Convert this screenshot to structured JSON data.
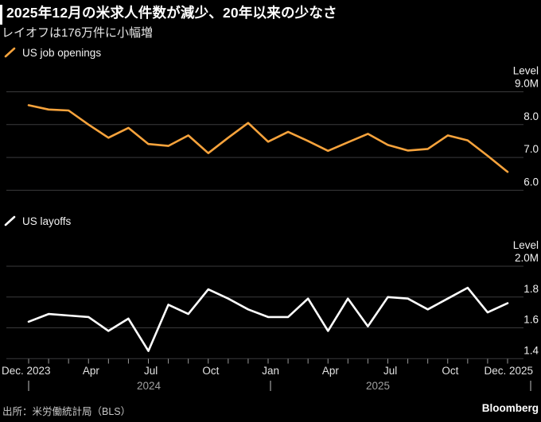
{
  "header": {
    "title": "2025年12月の米求人件数が減少、20年以来の少なさ",
    "subtitle": "レイオフは176万件に小幅増"
  },
  "footer": {
    "source": "出所：米労働統計局（BLS）",
    "logo": "Bloomberg"
  },
  "colors": {
    "background": "#000000",
    "openings_line": "#F7A33C",
    "layoffs_line": "#FFFFFF",
    "gridline": "#3A3A3C",
    "tick_label": "#F2F2F2",
    "month_label": "#E2E2E2",
    "year_label": "#A0A0A0",
    "tick_mark": "#9A9A9A"
  },
  "x_axis": {
    "months": [
      "Dec 2023",
      "Jan 2024",
      "Feb 2024",
      "Mar 2024",
      "Apr 2024",
      "May 2024",
      "Jun 2024",
      "Jul 2024",
      "Aug 2024",
      "Sep 2024",
      "Oct 2024",
      "Nov 2024",
      "Dec 2024",
      "Jan 2025",
      "Feb 2025",
      "Mar 2025",
      "Apr 2025",
      "May 2025",
      "Jun 2025",
      "Jul 2025",
      "Aug 2025",
      "Sep 2025",
      "Oct 2025",
      "Nov 2025",
      "Dec 2025"
    ],
    "tick_labels": [
      {
        "index": 0,
        "label": "Dec. 2023"
      },
      {
        "index": 4,
        "label": "Apr"
      },
      {
        "index": 7,
        "label": "Jul"
      },
      {
        "index": 10,
        "label": "Oct"
      },
      {
        "index": 13,
        "label": "Jan"
      },
      {
        "index": 16,
        "label": "Apr"
      },
      {
        "index": 19,
        "label": "Jul"
      },
      {
        "index": 22,
        "label": "Oct"
      },
      {
        "index": 24,
        "label": "Dec. 2025"
      }
    ],
    "year_labels": [
      "2024",
      "2025"
    ]
  },
  "chart_data": [
    {
      "type": "line",
      "title": "US job openings",
      "ylabel": "Level",
      "unit": "M",
      "ylim": [
        6.0,
        9.0
      ],
      "grid": true,
      "legend_position": "top-left",
      "axis_ticks": [
        {
          "value": 9.0,
          "label": "9.0M"
        },
        {
          "value": 8.0,
          "label": "8.0"
        },
        {
          "value": 7.0,
          "label": "7.0"
        },
        {
          "value": 6.0,
          "label": "6.0"
        }
      ],
      "categories": [
        "Dec 2023",
        "Jan 2024",
        "Feb 2024",
        "Mar 2024",
        "Apr 2024",
        "May 2024",
        "Jun 2024",
        "Jul 2024",
        "Aug 2024",
        "Sep 2024",
        "Oct 2024",
        "Nov 2024",
        "Dec 2024",
        "Jan 2025",
        "Feb 2025",
        "Mar 2025",
        "Apr 2025",
        "May 2025",
        "Jun 2025",
        "Jul 2025",
        "Aug 2025",
        "Sep 2025",
        "Oct 2025",
        "Nov 2025",
        "Dec 2025"
      ],
      "values": [
        8.59,
        8.46,
        8.43,
        8.0,
        7.6,
        7.9,
        7.41,
        7.35,
        7.67,
        7.13,
        7.6,
        8.05,
        7.48,
        7.78,
        7.5,
        7.2,
        7.46,
        7.72,
        7.38,
        7.21,
        7.26,
        7.67,
        7.52,
        7.05,
        6.56
      ]
    },
    {
      "type": "line",
      "title": "US layoffs",
      "ylabel": "Level",
      "unit": "M",
      "ylim": [
        1.4,
        2.0
      ],
      "grid": true,
      "legend_position": "top-left",
      "axis_ticks": [
        {
          "value": 2.0,
          "label": "2.0M"
        },
        {
          "value": 1.8,
          "label": "1.8"
        },
        {
          "value": 1.6,
          "label": "1.6"
        },
        {
          "value": 1.4,
          "label": "1.4"
        }
      ],
      "categories": [
        "Dec 2023",
        "Jan 2024",
        "Feb 2024",
        "Mar 2024",
        "Apr 2024",
        "May 2024",
        "Jun 2024",
        "Jul 2024",
        "Aug 2024",
        "Sep 2024",
        "Oct 2024",
        "Nov 2024",
        "Dec 2024",
        "Jan 2025",
        "Feb 2025",
        "Mar 2025",
        "Apr 2025",
        "May 2025",
        "Jun 2025",
        "Jul 2025",
        "Aug 2025",
        "Sep 2025",
        "Oct 2025",
        "Nov 2025",
        "Dec 2025"
      ],
      "values": [
        1.64,
        1.69,
        1.68,
        1.67,
        1.58,
        1.66,
        1.45,
        1.75,
        1.69,
        1.85,
        1.79,
        1.72,
        1.67,
        1.67,
        1.79,
        1.58,
        1.79,
        1.61,
        1.8,
        1.79,
        1.72,
        1.79,
        1.86,
        1.7,
        1.76
      ]
    }
  ]
}
